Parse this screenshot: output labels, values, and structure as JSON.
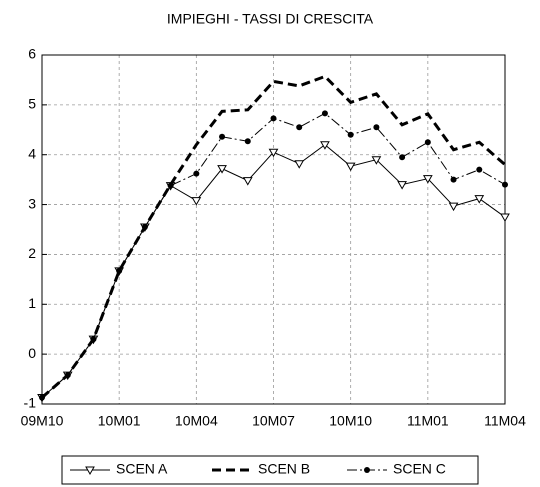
{
  "chart_data": {
    "type": "line",
    "title": "IMPIEGHI - TASSI DI CRESCITA",
    "categories": [
      "09M10",
      null,
      null,
      "10M01",
      null,
      null,
      "10M04",
      null,
      null,
      "10M07",
      null,
      null,
      "10M10",
      null,
      null,
      "11M01",
      null,
      null,
      "11M04"
    ],
    "series": [
      {
        "name": "SCEN A",
        "color": "#000000",
        "dash": "solid",
        "width": 1,
        "marker": "triangle-down",
        "values": [
          -0.87,
          -0.42,
          0.3,
          1.67,
          2.55,
          3.38,
          3.08,
          3.72,
          3.48,
          4.05,
          3.82,
          4.2,
          3.77,
          3.9,
          3.4,
          3.52,
          2.97,
          3.12,
          2.75
        ]
      },
      {
        "name": "SCEN B",
        "color": "#000000",
        "dash": "dashed",
        "width": 3,
        "marker": "none",
        "values": [
          -0.87,
          -0.42,
          0.3,
          1.67,
          2.55,
          3.4,
          4.2,
          4.87,
          4.9,
          5.47,
          5.38,
          5.57,
          5.05,
          5.22,
          4.6,
          4.82,
          4.1,
          4.25,
          3.8
        ]
      },
      {
        "name": "SCEN C",
        "color": "#000000",
        "dash": "dashdot",
        "width": 1,
        "marker": "circle",
        "values": [
          -0.87,
          -0.42,
          0.3,
          1.67,
          2.55,
          3.38,
          3.62,
          4.36,
          4.27,
          4.73,
          4.55,
          4.83,
          4.4,
          4.55,
          3.95,
          4.25,
          3.5,
          3.7,
          3.4
        ]
      }
    ],
    "ylim": [
      -1,
      6
    ],
    "yticks": [
      -1,
      0,
      1,
      2,
      3,
      4,
      5,
      6
    ],
    "grid": true,
    "legend": "bottom"
  }
}
